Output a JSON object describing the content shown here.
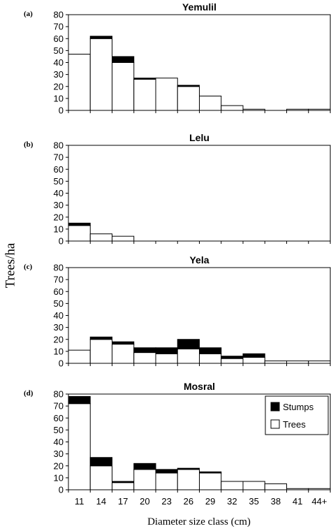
{
  "figure": {
    "ylabel": "Trees/ha",
    "xlabel": "Diameter size class (cm)"
  },
  "legend": {
    "stumps_label": "Stumps",
    "trees_label": "Trees",
    "placement": "top-right of panel (d)"
  },
  "colors": {
    "stumps": "#000000",
    "trees": "#ffffff",
    "outline": "#000000"
  },
  "chart_data": [
    {
      "type": "bar",
      "stacked": true,
      "panel_label": "(a)",
      "title": "Yemulil",
      "categories": [
        "11",
        "14",
        "17",
        "20",
        "23",
        "26",
        "29",
        "32",
        "35",
        "38",
        "41",
        "44+"
      ],
      "series": [
        {
          "name": "Trees",
          "values": [
            47,
            60,
            40,
            26,
            27,
            20,
            12,
            4,
            1,
            0,
            1,
            1
          ]
        },
        {
          "name": "Stumps",
          "values": [
            0,
            2,
            5,
            1,
            0,
            1,
            0,
            0,
            0,
            0,
            0,
            0
          ]
        }
      ],
      "ylim": [
        0,
        80
      ],
      "yticks": [
        0,
        10,
        20,
        30,
        40,
        50,
        60,
        70,
        80
      ],
      "show_xtick_labels": false
    },
    {
      "type": "bar",
      "stacked": true,
      "panel_label": "(b)",
      "title": "Lelu",
      "categories": [
        "11",
        "14",
        "17",
        "20",
        "23",
        "26",
        "29",
        "32",
        "35",
        "38",
        "41",
        "44+"
      ],
      "series": [
        {
          "name": "Trees",
          "values": [
            13,
            6,
            4,
            0,
            0,
            0,
            0,
            0,
            0,
            0,
            0,
            0
          ]
        },
        {
          "name": "Stumps",
          "values": [
            2,
            0,
            0,
            0,
            0,
            0,
            0,
            0,
            0,
            0,
            0,
            0
          ]
        }
      ],
      "ylim": [
        0,
        80
      ],
      "yticks": [
        0,
        10,
        20,
        30,
        40,
        50,
        60,
        70,
        80
      ],
      "show_xtick_labels": false
    },
    {
      "type": "bar",
      "stacked": true,
      "panel_label": "(c)",
      "title": "Yela",
      "categories": [
        "11",
        "14",
        "17",
        "20",
        "23",
        "26",
        "29",
        "32",
        "35",
        "38",
        "41",
        "44+"
      ],
      "series": [
        {
          "name": "Trees",
          "values": [
            11,
            20,
            16,
            9,
            8,
            12,
            8,
            4,
            5,
            2,
            2,
            2
          ]
        },
        {
          "name": "Stumps",
          "values": [
            0,
            2,
            2,
            4,
            5,
            8,
            5,
            2,
            3,
            0,
            0,
            0
          ]
        }
      ],
      "ylim": [
        0,
        80
      ],
      "yticks": [
        0,
        10,
        20,
        30,
        40,
        50,
        60,
        70,
        80
      ],
      "show_xtick_labels": false
    },
    {
      "type": "bar",
      "stacked": true,
      "panel_label": "(d)",
      "title": "Mosral",
      "categories": [
        "11",
        "14",
        "17",
        "20",
        "23",
        "26",
        "29",
        "32",
        "35",
        "38",
        "41",
        "44+"
      ],
      "series": [
        {
          "name": "Trees",
          "values": [
            72,
            20,
            6,
            17,
            14,
            17,
            14,
            7,
            7,
            5,
            1,
            1
          ]
        },
        {
          "name": "Stumps",
          "values": [
            6,
            7,
            1,
            5,
            3,
            1,
            1,
            0,
            0,
            0,
            0,
            0
          ]
        }
      ],
      "ylim": [
        0,
        80
      ],
      "yticks": [
        0,
        10,
        20,
        30,
        40,
        50,
        60,
        70,
        80
      ],
      "show_xtick_labels": true
    }
  ]
}
